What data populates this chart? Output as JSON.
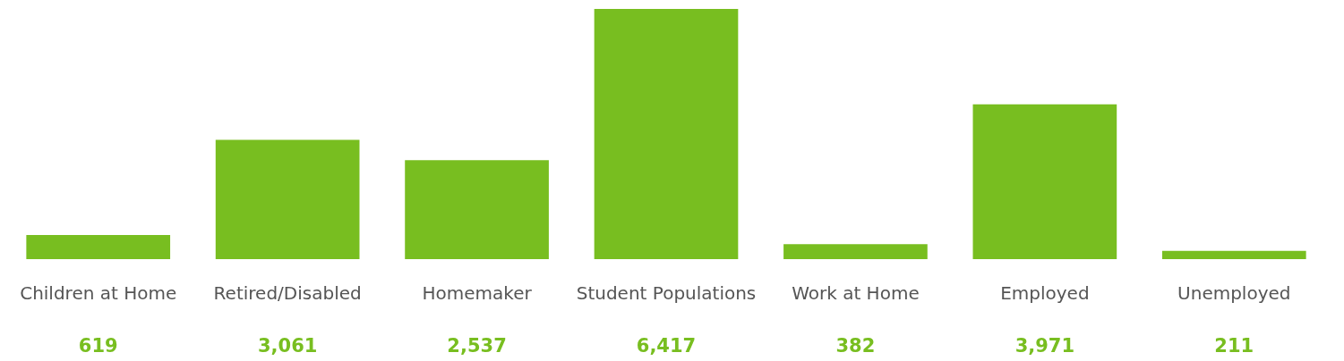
{
  "chart_data": {
    "type": "bar",
    "categories": [
      "Children at Home",
      "Retired/Disabled",
      "Homemaker",
      "Student Populations",
      "Work at Home",
      "Employed",
      "Unemployed"
    ],
    "values": [
      619,
      3061,
      2537,
      6417,
      382,
      3971,
      211
    ],
    "value_labels": [
      "619",
      "3,061",
      "2,537",
      "6,417",
      "382",
      "3,971",
      "211"
    ],
    "color": "#78be20"
  }
}
